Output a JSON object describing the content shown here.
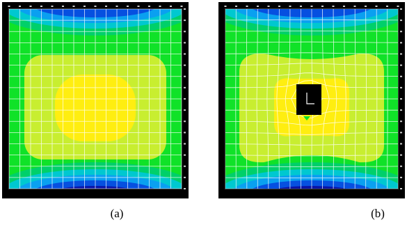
{
  "figure": {
    "panels": [
      {
        "id": "a",
        "caption": "(a)",
        "has_hole": false
      },
      {
        "id": "b",
        "caption": "(b)",
        "has_hole": true
      }
    ],
    "colors": {
      "yellow": "#ffee10",
      "yellow_green": "#c8ee30",
      "green": "#10e228",
      "green2": "#00d06a",
      "cyan": "#00c8d0",
      "light_blue": "#0aa0f0",
      "blue": "#0650e0",
      "navy": "#0a14a8",
      "hole": "#000000",
      "mesh": "#ffffff",
      "frame": "#000000"
    }
  }
}
